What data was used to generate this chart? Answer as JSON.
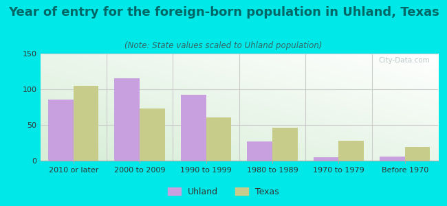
{
  "title": "Year of entry for the foreign-born population in Uhland, Texas",
  "subtitle": "(Note: State values scaled to Uhland population)",
  "categories": [
    "2010 or later",
    "2000 to 2009",
    "1990 to 1999",
    "1980 to 1989",
    "1970 to 1979",
    "Before 1970"
  ],
  "uhland_values": [
    86,
    115,
    92,
    27,
    5,
    6
  ],
  "texas_values": [
    105,
    73,
    61,
    46,
    28,
    19
  ],
  "uhland_color": "#c8a0e0",
  "texas_color": "#c8cc8a",
  "background_outer": "#00e8e8",
  "ylim": [
    0,
    150
  ],
  "yticks": [
    0,
    50,
    100,
    150
  ],
  "bar_width": 0.38,
  "title_fontsize": 13,
  "subtitle_fontsize": 8.5,
  "legend_fontsize": 9,
  "tick_fontsize": 8,
  "watermark": "City-Data.com"
}
